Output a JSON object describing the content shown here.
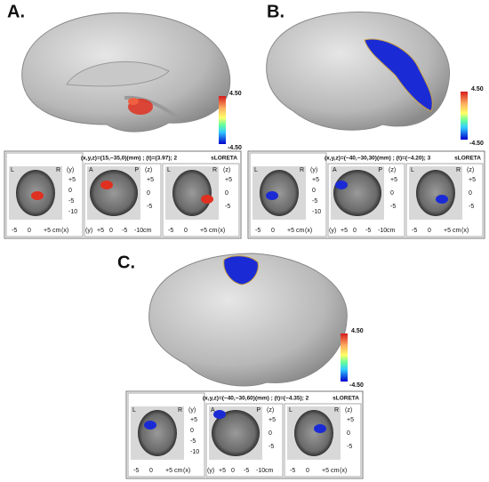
{
  "panels": [
    {
      "label": "A.",
      "scale": {
        "max": "4.50",
        "min": "-4.50"
      },
      "info": "(x,y,z)=(15,−35,0)(mm) ; (t)=(3.97); 2",
      "method": "sLORETA",
      "views": [
        {
          "corner": [
            "L",
            "R"
          ],
          "axis": "(y)",
          "side": [
            "+5",
            "0",
            "-5",
            "-10"
          ],
          "bottom": [
            "-5",
            "0",
            "+5"
          ],
          "unit": "cm",
          "bottom_axis": "(x)"
        },
        {
          "corner": [
            "A",
            "P"
          ],
          "axis": "(z)",
          "side": [
            "+5",
            "0",
            "-5"
          ],
          "bottom": [
            "+5",
            "0",
            "-5",
            "-10"
          ],
          "unit": "cm",
          "bottom_axis": "(y)"
        },
        {
          "corner": [
            "L",
            "R"
          ],
          "axis": "(z)",
          "side": [
            "+5",
            "0",
            "-5"
          ],
          "bottom": [
            "-5",
            "0",
            "+5"
          ],
          "unit": "cm",
          "bottom_axis": "(x)"
        }
      ]
    },
    {
      "label": "B.",
      "scale": {
        "max": "4.50",
        "min": "-4.50"
      },
      "info": "(x,y,z)=(−40,−30,30)(mm) ; (t)=(−4.20); 3",
      "method": "sLORETA",
      "views": [
        {
          "corner": [
            "L",
            "R"
          ],
          "axis": "(y)",
          "side": [
            "+5",
            "0",
            "-5",
            "-10"
          ],
          "bottom": [
            "-5",
            "0",
            "+5"
          ],
          "unit": "cm",
          "bottom_axis": "(x)"
        },
        {
          "corner": [
            "A",
            "P"
          ],
          "axis": "(z)",
          "side": [
            "+5",
            "0",
            "-5"
          ],
          "bottom": [
            "+5",
            "0",
            "-5",
            "-10"
          ],
          "unit": "cm",
          "bottom_axis": "(y)"
        },
        {
          "corner": [
            "L",
            "R"
          ],
          "axis": "(z)",
          "side": [
            "+5",
            "0",
            "-5"
          ],
          "bottom": [
            "-5",
            "0",
            "+5"
          ],
          "unit": "cm",
          "bottom_axis": "(x)"
        }
      ]
    },
    {
      "label": "C.",
      "scale": {
        "max": "4.50",
        "min": "-4.50"
      },
      "info": "(x,y,z)=(−40,−30,60)(mm) ; (t)=(−4.35); 2",
      "method": "sLORETA",
      "views": [
        {
          "corner": [
            "L",
            "R"
          ],
          "axis": "(y)",
          "side": [
            "+5",
            "0",
            "-5",
            "-10"
          ],
          "bottom": [
            "-5",
            "0",
            "+5"
          ],
          "unit": "cm",
          "bottom_axis": "(x)"
        },
        {
          "corner": [
            "A",
            "P"
          ],
          "axis": "(z)",
          "side": [
            "+5",
            "0",
            "-5"
          ],
          "bottom": [
            "+5",
            "0",
            "-5",
            "-10"
          ],
          "unit": "cm",
          "bottom_axis": "(y)"
        },
        {
          "corner": [
            "L",
            "R"
          ],
          "axis": "(z)",
          "side": [
            "+5",
            "0",
            "-5"
          ],
          "bottom": [
            "-5",
            "0",
            "+5"
          ],
          "unit": "cm",
          "bottom_axis": "(x)"
        }
      ]
    }
  ]
}
